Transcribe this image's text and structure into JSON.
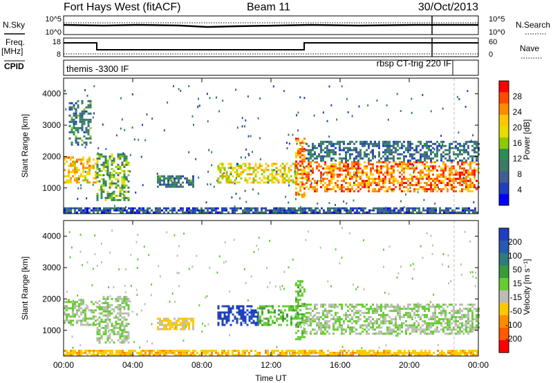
{
  "header": {
    "title": "Fort Hays West (fitACF)",
    "beam": "Beam 11",
    "date": "30/Oct/2013"
  },
  "aux_panels": {
    "nsky_label": "N.Sky",
    "nsearch_label": "N.Search",
    "freq_label": "Freq.",
    "freq_unit": "[MHz]",
    "nave_label": "Nave",
    "cpid_label": "CPID",
    "noise_ticks": [
      "10^5",
      "10^0"
    ],
    "freq_ticks": [
      "18",
      "8"
    ],
    "nave_ticks": [
      "60",
      "0"
    ],
    "cpid_left": "themis -3300 IF",
    "cpid_right": "rbsp CT-trig 220 IF"
  },
  "colorbars": {
    "power": {
      "label": "Power [dB]",
      "ticks": [
        "28",
        "24",
        "20",
        "16",
        "12",
        "8",
        "4"
      ],
      "colors": [
        "#ff0000",
        "#ff4a00",
        "#ff8c00",
        "#ffc800",
        "#e8dc00",
        "#8ccc00",
        "#2e8b57",
        "#3a7a66",
        "#3f5f8e",
        "#1f3fbf",
        "#0000ff"
      ]
    },
    "velocity": {
      "label": "Velocity [m s⁻¹]",
      "ticks": [
        "200",
        "100",
        "50",
        "15",
        "-15",
        "-50",
        "-100",
        "-200"
      ],
      "colors": [
        "#1f3fbf",
        "#2a5ab0",
        "#2f7a7a",
        "#3a9a3a",
        "#66cc33",
        "#bdbdb5",
        "#ffc800",
        "#ff8c00",
        "#ff5a00",
        "#ff0000"
      ]
    }
  },
  "chart_data": [
    {
      "type": "heatmap",
      "name": "power",
      "ylabel": "Slant Range [km]",
      "xlabel": "Time UT",
      "ylim": [
        180,
        4500
      ],
      "xlim": [
        0,
        24
      ],
      "x_tick_labels": [
        "00:00",
        "04:00",
        "08:00",
        "12:00",
        "16:00",
        "20:00",
        "00:00"
      ],
      "x_ticks": [
        0,
        4,
        8,
        12,
        16,
        20,
        24
      ],
      "y_ticks": [
        1000,
        2000,
        3000,
        4000
      ],
      "regions": [
        {
          "t": [
            0,
            1.9
          ],
          "r": [
            1150,
            2000
          ],
          "value_db": 22,
          "desc": "early evening echoes"
        },
        {
          "t": [
            0.3,
            1.6
          ],
          "r": [
            2400,
            3800
          ],
          "value_db": 10
        },
        {
          "t": [
            1.9,
            3.8
          ],
          "r": [
            600,
            2100
          ],
          "value_db": 14
        },
        {
          "t": [
            5.4,
            7.5
          ],
          "r": [
            1050,
            1400
          ],
          "value_db": 9
        },
        {
          "t": [
            8.9,
            13.5
          ],
          "r": [
            1150,
            1800
          ],
          "value_db": 20
        },
        {
          "t": [
            13.4,
            14.0
          ],
          "r": [
            700,
            2600
          ],
          "value_db": 26
        },
        {
          "t": [
            14.0,
            24.0
          ],
          "r": [
            900,
            1850
          ],
          "value_db": 26
        },
        {
          "t": [
            14.0,
            24.0
          ],
          "r": [
            1850,
            2500
          ],
          "value_db": 8
        },
        {
          "t": [
            0,
            24
          ],
          "r": [
            200,
            380
          ],
          "value_db": 6,
          "desc": "near-range ground scatter"
        }
      ]
    },
    {
      "type": "heatmap",
      "name": "velocity",
      "ylabel": "Slant Range [km]",
      "xlabel": "Time UT",
      "ylim": [
        180,
        4500
      ],
      "xlim": [
        0,
        24
      ],
      "x_tick_labels": [
        "00:00",
        "04:00",
        "08:00",
        "12:00",
        "16:00",
        "20:00",
        "00:00"
      ],
      "x_ticks": [
        0,
        4,
        8,
        12,
        16,
        20,
        24
      ],
      "y_ticks": [
        1000,
        2000,
        3000,
        4000
      ],
      "regions": [
        {
          "t": [
            0,
            1.9
          ],
          "r": [
            1150,
            2000
          ],
          "value_ms": 0
        },
        {
          "t": [
            1.9,
            3.8
          ],
          "r": [
            600,
            2100
          ],
          "value_ms": 0
        },
        {
          "t": [
            5.4,
            7.5
          ],
          "r": [
            1050,
            1400
          ],
          "value_ms": -60
        },
        {
          "t": [
            8.9,
            11.2
          ],
          "r": [
            1150,
            1800
          ],
          "value_ms": 220
        },
        {
          "t": [
            11.2,
            13.5
          ],
          "r": [
            1150,
            1800
          ],
          "value_ms": 40
        },
        {
          "t": [
            13.4,
            14.0
          ],
          "r": [
            700,
            2600
          ],
          "value_ms": 30
        },
        {
          "t": [
            14.0,
            24.0
          ],
          "r": [
            900,
            1850
          ],
          "value_ms": 0
        },
        {
          "t": [
            0,
            24
          ],
          "r": [
            200,
            380
          ],
          "value_ms": -80
        }
      ]
    }
  ]
}
